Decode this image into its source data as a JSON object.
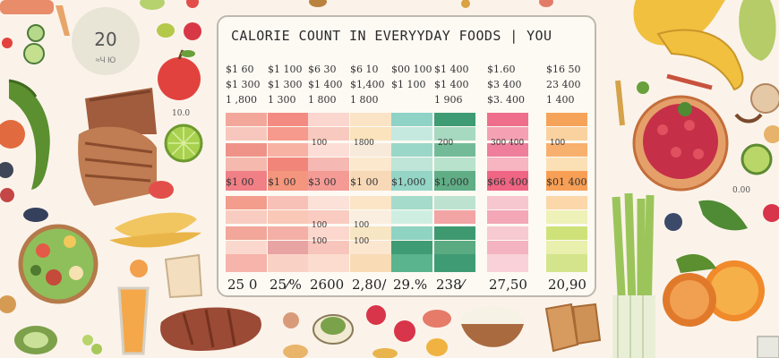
{
  "badge": {
    "number": "20",
    "subtext": "≈Ч Ю"
  },
  "panel": {
    "title": "CALORIE COUNT IN EVERYYDAY FOODS | YOU",
    "columns": [
      {
        "top_labels": [
          "$1 60",
          "$1 300",
          "1 ,800"
        ],
        "mid_label": "$1 00",
        "cells_top": [
          {
            "color": "#f3a79b"
          },
          {
            "color": "#f7c7bd"
          },
          {
            "color": "#ef9388"
          },
          {
            "color": "#f5b9ae"
          },
          {
            "color": "#f17f86"
          }
        ],
        "cells_bot": [
          {
            "color": "#f39d8c"
          },
          {
            "color": "#f8ccc0"
          },
          {
            "color": "#f3a69a"
          },
          {
            "color": "#fbd8ce"
          },
          {
            "color": "#f6b4ab"
          }
        ],
        "cell_labels": [],
        "bottom": "25 0"
      },
      {
        "top_labels": [
          "$1 100",
          "$1 300",
          "1 300"
        ],
        "mid_label": "$1 00",
        "cells_top": [
          {
            "color": "#f48b83"
          },
          {
            "color": "#f59a8c"
          },
          {
            "color": "#f7b2a4"
          },
          {
            "color": "#f2857a"
          },
          {
            "color": "#f4967d"
          }
        ],
        "cells_bot": [
          {
            "color": "#f7c1b7"
          },
          {
            "color": "#fac8b7"
          },
          {
            "color": "#f4b0a6"
          },
          {
            "color": "#e8a3a3"
          },
          {
            "color": "#fad2c5"
          }
        ],
        "cell_labels": [],
        "bottom": "25⁄%"
      },
      {
        "top_labels": [
          "$6 30",
          "$1 400",
          "1 800"
        ],
        "mid_label": "$3 00",
        "cells_top": [
          {
            "color": "#fbd6cf"
          },
          {
            "color": "#f8c9bf"
          },
          {
            "color": "#fcded6"
          },
          {
            "color": "#f6b8b2"
          },
          {
            "color": "#f49b96"
          }
        ],
        "cells_bot": [
          {
            "color": "#fbe1d8"
          },
          {
            "color": "#f9cbc1"
          },
          {
            "color": "#fbd7cd"
          },
          {
            "color": "#f7c5bb"
          },
          {
            "color": "#fbdccf"
          }
        ],
        "cell_labels": [
          "100",
          "100",
          "100"
        ],
        "bottom": "2600"
      },
      {
        "top_labels": [
          "$6 10",
          "$1,400",
          "1 800"
        ],
        "mid_label": "$1 00",
        "cells_top": [
          {
            "color": "#fbe3c5"
          },
          {
            "color": "#fae3bd"
          },
          {
            "color": "#f8eadb"
          },
          {
            "color": "#fbe8cd"
          },
          {
            "color": "#f8d9b7"
          }
        ],
        "cells_bot": [
          {
            "color": "#fbe5c6"
          },
          {
            "color": "#f9eee0"
          },
          {
            "color": "#f7e6c3"
          },
          {
            "color": "#fbe7cf"
          },
          {
            "color": "#f9dbb6"
          }
        ],
        "cell_labels": [
          "1800",
          "100",
          "100"
        ],
        "bottom": "2,80/"
      },
      {
        "top_labels": [
          "$00 100",
          "$1 100",
          ""
        ],
        "mid_label": "$1,000",
        "cells_top": [
          {
            "color": "#8fd3c6"
          },
          {
            "color": "#c6e9df"
          },
          {
            "color": "#9bd7c8"
          },
          {
            "color": "#bfe4d8"
          },
          {
            "color": "#94d5c6"
          }
        ],
        "cells_bot": [
          {
            "color": "#a4dbcb"
          },
          {
            "color": "#cfeee2"
          },
          {
            "color": "#8fd3c2"
          },
          {
            "color": "#3f9b73"
          },
          {
            "color": "#5ab48e"
          }
        ],
        "cell_labels": [],
        "bottom": "29.%"
      },
      {
        "top_labels": [
          "$1 400",
          "$1 400",
          "1 906"
        ],
        "mid_label": "$1,000",
        "cells_top": [
          {
            "color": "#3f9b73"
          },
          {
            "color": "#a7d8c0"
          },
          {
            "color": "#73bb98"
          },
          {
            "color": "#b9e2cd"
          },
          {
            "color": "#60ad86"
          }
        ],
        "cells_bot": [
          {
            "color": "#bde3d0"
          },
          {
            "color": "#f3a4a4"
          },
          {
            "color": "#3e9870"
          },
          {
            "color": "#5aab81"
          },
          {
            "color": "#3f9b73"
          }
        ],
        "cell_labels": [
          "200"
        ],
        "bottom": "238⁄"
      },
      {
        "top_labels": [
          "$1.60",
          "$3 400",
          "$3. 400"
        ],
        "mid_label": "$66 400",
        "cells_top": [
          {
            "color": "#ef6e8b"
          },
          {
            "color": "#f4a1b3"
          },
          {
            "color": "#ef7e9b"
          },
          {
            "color": "#f7b4c1"
          },
          {
            "color": "#ef6583"
          }
        ],
        "cells_bot": [
          {
            "color": "#f7c7cf"
          },
          {
            "color": "#f3a7b7"
          },
          {
            "color": "#f7c9d0"
          },
          {
            "color": "#f4b3c0"
          },
          {
            "color": "#f9d1d8"
          }
        ],
        "cell_labels": [
          "300 400"
        ],
        "bottom": "27,50"
      },
      {
        "top_labels": [
          "$16 50",
          "23 400",
          "1 400"
        ],
        "mid_label": "$01 400",
        "cells_top": [
          {
            "color": "#f6a35a"
          },
          {
            "color": "#fad2a0"
          },
          {
            "color": "#f8b06e"
          },
          {
            "color": "#fbe0b6"
          },
          {
            "color": "#f79f55"
          }
        ],
        "cells_bot": [
          {
            "color": "#fbd7a9"
          },
          {
            "color": "#eef1b8"
          },
          {
            "color": "#cfe27a"
          },
          {
            "color": "#e9efac"
          },
          {
            "color": "#d4e48c"
          }
        ],
        "cell_labels": [
          "100"
        ],
        "bottom": "20,90"
      }
    ]
  },
  "side_labels": {
    "left_top": "10.0",
    "right_top": "0.00"
  }
}
